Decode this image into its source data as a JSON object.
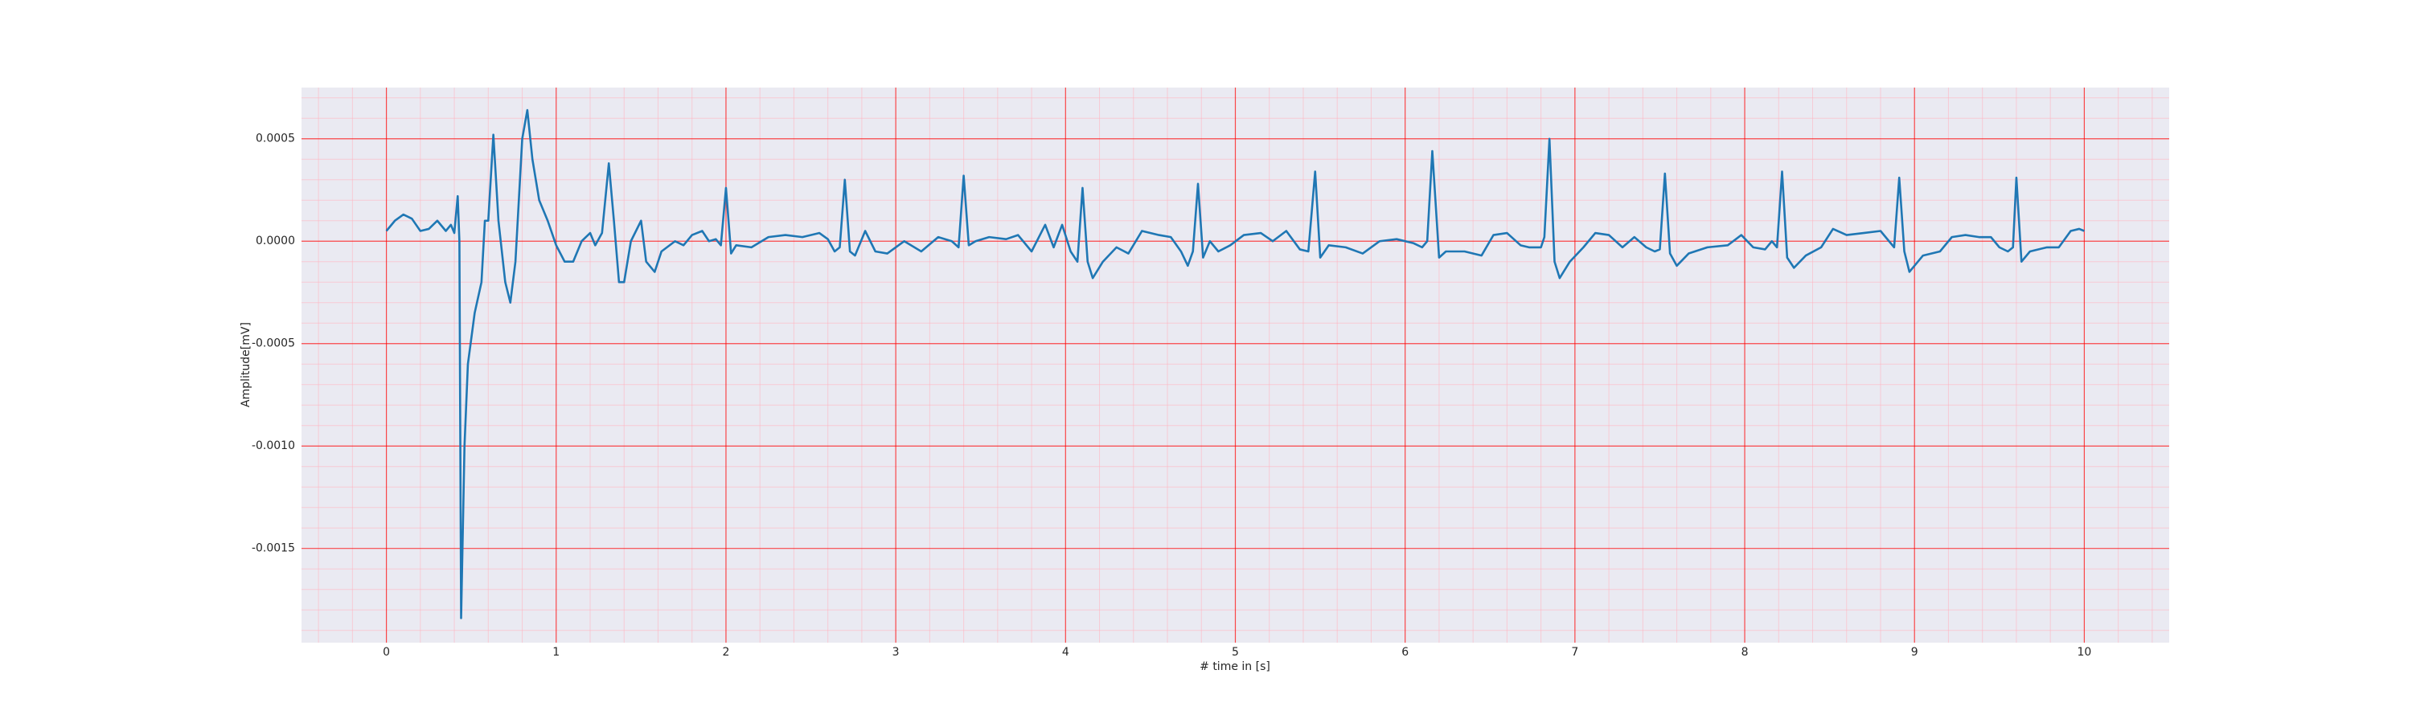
{
  "chart_data": {
    "type": "line",
    "xlabel": "# time in [s]",
    "ylabel": "Amplitude[mV]",
    "color": "#1f77b4",
    "grid": true,
    "xlim": [
      -0.5,
      10.5
    ],
    "ylim": [
      -0.00196,
      0.00075
    ],
    "xticks": [
      0,
      1,
      2,
      3,
      4,
      5,
      6,
      7,
      8,
      9,
      10
    ],
    "yticks": [
      {
        "value": -0.0015,
        "label": "-0.0015"
      },
      {
        "value": -0.001,
        "label": "-0.0010"
      },
      {
        "value": -0.0005,
        "label": "-0.0005"
      },
      {
        "value": 0,
        "label": "0.0000"
      },
      {
        "value": 0.0005,
        "label": "0.0005"
      }
    ],
    "xminorticks": [
      -0.4,
      -0.2,
      0.2,
      0.4,
      0.6,
      0.8,
      1.2,
      1.4,
      1.6,
      1.8,
      2.2,
      2.4,
      2.6,
      2.8,
      3.2,
      3.4,
      3.6,
      3.8,
      4.2,
      4.4,
      4.6,
      4.8,
      5.2,
      5.4,
      5.6,
      5.8,
      6.2,
      6.4,
      6.6,
      6.8,
      7.2,
      7.4,
      7.6,
      7.8,
      8.2,
      8.4,
      8.6,
      8.8,
      9.2,
      9.4,
      9.6,
      9.8,
      10.2,
      10.4
    ],
    "yminorticks": [
      -0.0019,
      -0.0018,
      -0.0017,
      -0.0016,
      -0.0014,
      -0.0013,
      -0.0012,
      -0.0011,
      -0.0009,
      -0.0008,
      -0.0007,
      -0.0006,
      -0.0004,
      -0.0003,
      -0.0002,
      -0.0001,
      0.0001,
      0.0002,
      0.0003,
      0.0004,
      0.0006,
      0.0007
    ],
    "x": [
      0,
      0.05,
      0.1,
      0.15,
      0.2,
      0.25,
      0.3,
      0.35,
      0.38,
      0.4,
      0.42,
      0.43,
      0.44,
      0.46,
      0.48,
      0.52,
      0.56,
      0.58,
      0.6,
      0.63,
      0.66,
      0.7,
      0.73,
      0.76,
      0.8,
      0.83,
      0.86,
      0.9,
      0.95,
      1.0,
      1.05,
      1.1,
      1.15,
      1.2,
      1.23,
      1.27,
      1.31,
      1.34,
      1.37,
      1.4,
      1.44,
      1.5,
      1.53,
      1.58,
      1.62,
      1.7,
      1.75,
      1.8,
      1.86,
      1.9,
      1.94,
      1.97,
      2.0,
      2.03,
      2.06,
      2.15,
      2.25,
      2.35,
      2.45,
      2.55,
      2.6,
      2.64,
      2.67,
      2.7,
      2.73,
      2.76,
      2.82,
      2.88,
      2.95,
      3.05,
      3.15,
      3.25,
      3.33,
      3.37,
      3.4,
      3.43,
      3.47,
      3.55,
      3.65,
      3.72,
      3.8,
      3.88,
      3.93,
      3.98,
      4.03,
      4.07,
      4.1,
      4.13,
      4.16,
      4.22,
      4.3,
      4.37,
      4.45,
      4.55,
      4.62,
      4.68,
      4.72,
      4.75,
      4.78,
      4.81,
      4.85,
      4.9,
      4.97,
      5.05,
      5.15,
      5.22,
      5.3,
      5.38,
      5.43,
      5.47,
      5.5,
      5.55,
      5.65,
      5.75,
      5.85,
      5.95,
      6.05,
      6.1,
      6.13,
      6.16,
      6.2,
      6.24,
      6.35,
      6.45,
      6.52,
      6.6,
      6.68,
      6.73,
      6.8,
      6.82,
      6.85,
      6.88,
      6.91,
      6.97,
      7.05,
      7.12,
      7.2,
      7.28,
      7.35,
      7.42,
      7.47,
      7.5,
      7.53,
      7.56,
      7.6,
      7.67,
      7.78,
      7.9,
      7.98,
      8.05,
      8.12,
      8.16,
      8.19,
      8.22,
      8.25,
      8.29,
      8.36,
      8.45,
      8.52,
      8.6,
      8.7,
      8.8,
      8.85,
      8.88,
      8.91,
      8.94,
      8.97,
      9.05,
      9.15,
      9.22,
      9.3,
      9.38,
      9.45,
      9.5,
      9.55,
      9.58,
      9.6,
      9.63,
      9.68,
      9.78,
      9.85,
      9.92,
      9.97,
      10.0
    ],
    "values": [
      5e-05,
      0.0001,
      0.00013,
      0.00011,
      5e-05,
      6e-05,
      0.0001,
      5e-05,
      8e-05,
      4e-05,
      0.00022,
      0.0,
      -0.00184,
      -0.001,
      -0.0006,
      -0.00035,
      -0.0002,
      0.0001,
      0.0001,
      0.00052,
      0.0001,
      -0.0002,
      -0.0003,
      -0.0001,
      0.0005,
      0.00064,
      0.0004,
      0.0002,
      0.0001,
      -2e-05,
      -0.0001,
      -0.0001,
      0.0,
      4e-05,
      -2e-05,
      4e-05,
      0.00038,
      0.0001,
      -0.0002,
      -0.0002,
      0.0,
      0.0001,
      -0.0001,
      -0.00015,
      -5e-05,
      0.0,
      -2e-05,
      3e-05,
      5e-05,
      0.0,
      1e-05,
      -2e-05,
      0.00026,
      -6e-05,
      -2e-05,
      -3e-05,
      2e-05,
      3e-05,
      2e-05,
      4e-05,
      1e-05,
      -5e-05,
      -3e-05,
      0.0003,
      -5e-05,
      -7e-05,
      5e-05,
      -5e-05,
      -6e-05,
      0.0,
      -5e-05,
      2e-05,
      0.0,
      -3e-05,
      0.00032,
      -2e-05,
      0.0,
      2e-05,
      1e-05,
      3e-05,
      -5e-05,
      8e-05,
      -3e-05,
      8e-05,
      -5e-05,
      -0.0001,
      0.00026,
      -0.0001,
      -0.00018,
      -0.0001,
      -3e-05,
      -6e-05,
      5e-05,
      3e-05,
      2e-05,
      -5e-05,
      -0.00012,
      -5e-05,
      0.00028,
      -8e-05,
      0.0,
      -5e-05,
      -2e-05,
      3e-05,
      4e-05,
      0.0,
      5e-05,
      -4e-05,
      -5e-05,
      0.00034,
      -8e-05,
      -2e-05,
      -3e-05,
      -6e-05,
      0.0,
      1e-05,
      -1e-05,
      -3e-05,
      0.0,
      0.00044,
      -8e-05,
      -5e-05,
      -5e-05,
      -7e-05,
      3e-05,
      4e-05,
      -2e-05,
      -3e-05,
      -3e-05,
      2e-05,
      0.0005,
      -0.0001,
      -0.00018,
      -0.0001,
      -3e-05,
      4e-05,
      3e-05,
      -3e-05,
      2e-05,
      -3e-05,
      -5e-05,
      -4e-05,
      0.00033,
      -6e-05,
      -0.00012,
      -6e-05,
      -3e-05,
      -2e-05,
      3e-05,
      -3e-05,
      -4e-05,
      0.0,
      -3e-05,
      0.00034,
      -8e-05,
      -0.00013,
      -7e-05,
      -3e-05,
      6e-05,
      3e-05,
      4e-05,
      5e-05,
      0.0,
      -3e-05,
      0.00031,
      -5e-05,
      -0.00015,
      -7e-05,
      -5e-05,
      2e-05,
      3e-05,
      2e-05,
      2e-05,
      -3e-05,
      -5e-05,
      -3e-05,
      0.00031,
      -0.0001,
      -5e-05,
      -3e-05,
      -3e-05,
      5e-05,
      6e-05,
      5e-05
    ]
  }
}
